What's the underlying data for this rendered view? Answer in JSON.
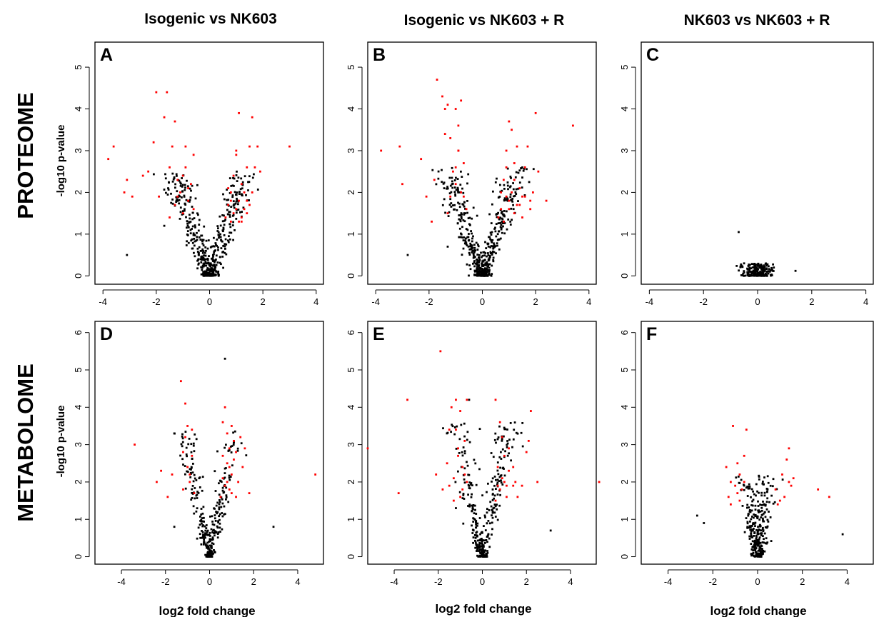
{
  "column_titles": [
    "Isogenic vs NK603",
    "Isogenic vs NK603 + R",
    "NK603 vs NK603 + R"
  ],
  "row_titles": [
    "PROTEOME",
    "METABOLOME"
  ],
  "ylabel": "-log10 p-value",
  "xlabel": "log2 fold change",
  "colors": {
    "significant": "#ff0000",
    "not_significant": "#000000"
  },
  "chart_data": [
    {
      "type": "scatter",
      "panel": "A",
      "column": "Isogenic vs NK603",
      "row": "PROTEOME",
      "xlim": [
        -4.3,
        4.3
      ],
      "ylim": [
        -0.2,
        5.6
      ],
      "x_ticks": [
        -4,
        -2,
        0,
        2,
        4
      ],
      "y_ticks": [
        0,
        1,
        2,
        3,
        4,
        5
      ],
      "cloud": {
        "spread": 0.14,
        "slope": 0.55,
        "ymax": 2.5,
        "count": 480
      },
      "significant_points": [
        [
          -3.8,
          2.8
        ],
        [
          -3.6,
          3.1
        ],
        [
          -3.1,
          2.3
        ],
        [
          -3.2,
          2.0
        ],
        [
          -2.9,
          1.9
        ],
        [
          -2.5,
          2.4
        ],
        [
          -2.3,
          2.5
        ],
        [
          -2.1,
          3.2
        ],
        [
          -2.0,
          4.4
        ],
        [
          -1.9,
          1.9
        ],
        [
          -1.7,
          3.8
        ],
        [
          -1.6,
          4.4
        ],
        [
          -1.5,
          2.6
        ],
        [
          -1.4,
          3.1
        ],
        [
          -1.3,
          3.7
        ],
        [
          -1.2,
          2.3
        ],
        [
          -1.1,
          2.0
        ],
        [
          -1.0,
          1.5
        ],
        [
          -0.9,
          2.6
        ],
        [
          -0.8,
          1.8
        ],
        [
          -0.7,
          2.2
        ],
        [
          -0.6,
          1.6
        ],
        [
          -1.5,
          1.4
        ],
        [
          -1.3,
          1.7
        ],
        [
          -0.9,
          3.1
        ],
        [
          -0.6,
          2.9
        ],
        [
          -0.8,
          2.1
        ],
        [
          -1.0,
          2.4
        ],
        [
          -1.2,
          1.9
        ],
        [
          0.6,
          1.4
        ],
        [
          0.7,
          1.7
        ],
        [
          0.8,
          2.0
        ],
        [
          0.9,
          1.5
        ],
        [
          0.8,
          1.8
        ],
        [
          0.9,
          2.4
        ],
        [
          1.0,
          2.9
        ],
        [
          1.0,
          3.0
        ],
        [
          1.1,
          3.9
        ],
        [
          1.2,
          2.2
        ],
        [
          1.3,
          1.6
        ],
        [
          1.4,
          1.8
        ],
        [
          1.5,
          3.1
        ],
        [
          1.6,
          2.0
        ],
        [
          1.6,
          3.8
        ],
        [
          1.7,
          2.6
        ],
        [
          1.8,
          3.1
        ],
        [
          1.9,
          2.5
        ],
        [
          1.2,
          1.4
        ],
        [
          1.1,
          1.8
        ],
        [
          1.3,
          2.0
        ],
        [
          1.4,
          1.5
        ],
        [
          1.5,
          1.7
        ],
        [
          1.0,
          1.6
        ],
        [
          1.2,
          1.3
        ],
        [
          3.0,
          3.1
        ],
        [
          0.7,
          2.1
        ],
        [
          1.1,
          1.3
        ],
        [
          1.4,
          2.6
        ],
        [
          0.8,
          1.3
        ]
      ],
      "notable_nonsignificant_points": [
        [
          -3.1,
          0.5
        ],
        [
          -1.7,
          1.2
        ]
      ]
    },
    {
      "type": "scatter",
      "panel": "B",
      "column": "Isogenic vs NK603 + R",
      "row": "PROTEOME",
      "xlim": [
        -4.3,
        4.3
      ],
      "ylim": [
        -0.2,
        5.6
      ],
      "x_ticks": [
        -4,
        -2,
        0,
        2,
        4
      ],
      "y_ticks": [
        0,
        1,
        2,
        3,
        4,
        5
      ],
      "cloud": {
        "spread": 0.14,
        "slope": 0.55,
        "ymax": 2.6,
        "count": 500
      },
      "significant_points": [
        [
          -3.8,
          3.0
        ],
        [
          -3.1,
          3.1
        ],
        [
          -3.0,
          2.2
        ],
        [
          -2.3,
          2.8
        ],
        [
          -2.1,
          1.9
        ],
        [
          -1.9,
          1.3
        ],
        [
          -1.8,
          2.3
        ],
        [
          -1.7,
          4.7
        ],
        [
          -1.5,
          4.3
        ],
        [
          -1.4,
          3.4
        ],
        [
          -1.4,
          4.0
        ],
        [
          -1.3,
          4.1
        ],
        [
          -1.2,
          3.3
        ],
        [
          -1.1,
          2.5
        ],
        [
          -1.0,
          2.2
        ],
        [
          -1.0,
          4.0
        ],
        [
          -0.9,
          3.0
        ],
        [
          -0.9,
          3.6
        ],
        [
          -0.8,
          2.0
        ],
        [
          -0.8,
          4.2
        ],
        [
          -0.7,
          1.9
        ],
        [
          -0.7,
          2.7
        ],
        [
          -0.6,
          1.6
        ],
        [
          -1.2,
          1.9
        ],
        [
          -1.3,
          1.5
        ],
        [
          -1.0,
          2.6
        ],
        [
          -0.9,
          3.0
        ],
        [
          0.6,
          1.4
        ],
        [
          0.7,
          1.6
        ],
        [
          0.7,
          2.0
        ],
        [
          0.8,
          2.3
        ],
        [
          0.9,
          2.6
        ],
        [
          0.9,
          3.0
        ],
        [
          1.0,
          3.7
        ],
        [
          1.0,
          1.8
        ],
        [
          1.1,
          2.0
        ],
        [
          1.1,
          3.5
        ],
        [
          1.2,
          1.5
        ],
        [
          1.2,
          2.7
        ],
        [
          1.3,
          1.7
        ],
        [
          1.3,
          3.1
        ],
        [
          1.4,
          2.1
        ],
        [
          1.5,
          1.9
        ],
        [
          1.6,
          2.6
        ],
        [
          1.7,
          3.1
        ],
        [
          1.8,
          1.6
        ],
        [
          1.9,
          2.0
        ],
        [
          2.0,
          3.9
        ],
        [
          2.1,
          2.5
        ],
        [
          2.4,
          1.8
        ],
        [
          3.4,
          3.6
        ],
        [
          1.0,
          1.6
        ],
        [
          1.4,
          1.7
        ],
        [
          0.8,
          1.3
        ],
        [
          1.6,
          1.9
        ],
        [
          1.2,
          2.3
        ],
        [
          1.5,
          1.4
        ],
        [
          1.8,
          1.8
        ],
        [
          0.9,
          1.9
        ]
      ],
      "notable_nonsignificant_points": [
        [
          -2.8,
          0.5
        ],
        [
          -1.3,
          0.7
        ]
      ]
    },
    {
      "type": "scatter",
      "panel": "C",
      "column": "NK603 vs NK603 + R",
      "row": "PROTEOME",
      "xlim": [
        -4.3,
        4.3
      ],
      "ylim": [
        -0.2,
        5.6
      ],
      "x_ticks": [
        -4,
        -2,
        0,
        2,
        4
      ],
      "y_ticks": [
        0,
        1,
        2,
        3,
        4,
        5
      ],
      "cloud": {
        "spread": 0.28,
        "slope": 0.08,
        "ymax": 0.3,
        "count": 220
      },
      "significant_points": [],
      "notable_nonsignificant_points": [
        [
          -0.7,
          1.05
        ],
        [
          1.4,
          0.12
        ],
        [
          -0.5,
          0.3
        ],
        [
          0.6,
          0.2
        ]
      ]
    },
    {
      "type": "scatter",
      "panel": "D",
      "column": "Isogenic vs NK603",
      "row": "METABOLOME",
      "xlim": [
        -5.2,
        5.2
      ],
      "ylim": [
        -0.2,
        6.3
      ],
      "x_ticks": [
        -4,
        -2,
        0,
        2,
        4
      ],
      "y_ticks": [
        0,
        1,
        2,
        3,
        4,
        5,
        6
      ],
      "cloud": {
        "spread": 0.1,
        "slope": 0.35,
        "ymax": 3.4,
        "count": 300
      },
      "significant_points": [
        [
          -3.4,
          3.0
        ],
        [
          -2.4,
          2.0
        ],
        [
          -2.2,
          2.3
        ],
        [
          -1.9,
          1.6
        ],
        [
          -1.7,
          2.2
        ],
        [
          -1.3,
          4.7
        ],
        [
          -1.2,
          2.8
        ],
        [
          -1.1,
          4.1
        ],
        [
          -1.0,
          3.5
        ],
        [
          -0.9,
          2.2
        ],
        [
          -0.8,
          3.4
        ],
        [
          -0.7,
          1.7
        ],
        [
          -1.0,
          2.4
        ],
        [
          -0.9,
          2.0
        ],
        [
          -1.2,
          1.8
        ],
        [
          -0.8,
          2.7
        ],
        [
          -1.1,
          3.2
        ],
        [
          0.5,
          1.6
        ],
        [
          0.6,
          2.1
        ],
        [
          0.6,
          3.6
        ],
        [
          0.7,
          4.0
        ],
        [
          0.8,
          2.5
        ],
        [
          0.8,
          3.3
        ],
        [
          0.9,
          1.8
        ],
        [
          0.9,
          2.9
        ],
        [
          1.0,
          3.5
        ],
        [
          1.0,
          2.2
        ],
        [
          1.1,
          2.6
        ],
        [
          1.1,
          3.1
        ],
        [
          1.2,
          1.6
        ],
        [
          1.3,
          2.0
        ],
        [
          1.4,
          3.2
        ],
        [
          1.5,
          2.4
        ],
        [
          1.6,
          2.9
        ],
        [
          1.8,
          1.7
        ],
        [
          4.8,
          2.2
        ],
        [
          0.7,
          1.9
        ],
        [
          0.9,
          2.4
        ],
        [
          1.2,
          2.8
        ],
        [
          0.8,
          2.0
        ],
        [
          1.0,
          1.7
        ],
        [
          0.6,
          2.7
        ]
      ],
      "highlight_nonsignificant": [
        [
          0.7,
          5.3
        ]
      ],
      "notable_nonsignificant_points": [
        [
          2.9,
          0.8
        ],
        [
          -1.6,
          0.8
        ]
      ]
    },
    {
      "type": "scatter",
      "panel": "E",
      "column": "Isogenic vs NK603 + R",
      "row": "METABOLOME",
      "xlim": [
        -5.2,
        5.2
      ],
      "ylim": [
        -0.2,
        6.3
      ],
      "x_ticks": [
        -4,
        -2,
        0,
        2,
        4
      ],
      "y_ticks": [
        0,
        1,
        2,
        3,
        4,
        5,
        6
      ],
      "cloud": {
        "spread": 0.1,
        "slope": 0.35,
        "ymax": 3.6,
        "count": 320
      },
      "significant_points": [
        [
          -5.2,
          2.9
        ],
        [
          -3.8,
          1.7
        ],
        [
          -3.4,
          4.2
        ],
        [
          -2.1,
          2.2
        ],
        [
          -1.9,
          5.5
        ],
        [
          -1.8,
          1.8
        ],
        [
          -1.6,
          2.5
        ],
        [
          -1.5,
          3.4
        ],
        [
          -1.4,
          4.0
        ],
        [
          -1.3,
          2.1
        ],
        [
          -1.2,
          4.2
        ],
        [
          -1.1,
          2.7
        ],
        [
          -1.0,
          3.9
        ],
        [
          -1.0,
          1.6
        ],
        [
          -0.9,
          2.4
        ],
        [
          -0.8,
          3.1
        ],
        [
          -0.7,
          4.2
        ],
        [
          -0.7,
          2.0
        ],
        [
          -1.3,
          1.5
        ],
        [
          -1.1,
          2.9
        ],
        [
          -0.9,
          1.8
        ],
        [
          -1.5,
          1.9
        ],
        [
          -1.2,
          3.4
        ],
        [
          -0.8,
          2.2
        ],
        [
          0.6,
          1.5
        ],
        [
          0.6,
          4.2
        ],
        [
          0.7,
          2.4
        ],
        [
          0.8,
          3.6
        ],
        [
          0.8,
          1.8
        ],
        [
          0.9,
          3.2
        ],
        [
          1.0,
          2.0
        ],
        [
          1.0,
          2.7
        ],
        [
          1.1,
          1.6
        ],
        [
          1.2,
          2.3
        ],
        [
          1.4,
          1.9
        ],
        [
          1.6,
          1.6
        ],
        [
          1.8,
          1.9
        ],
        [
          2.0,
          2.8
        ],
        [
          2.1,
          3.1
        ],
        [
          2.2,
          3.9
        ],
        [
          2.5,
          2.0
        ],
        [
          5.3,
          2.0
        ],
        [
          0.9,
          2.1
        ],
        [
          1.2,
          2.9
        ],
        [
          0.7,
          1.9
        ],
        [
          1.4,
          2.4
        ],
        [
          1.1,
          1.9
        ],
        [
          1.5,
          2.0
        ]
      ],
      "highlight_nonsignificant": [
        [
          -0.6,
          4.2
        ]
      ],
      "notable_nonsignificant_points": [
        [
          3.1,
          0.7
        ],
        [
          -1.2,
          1.3
        ]
      ]
    },
    {
      "type": "scatter",
      "panel": "F",
      "column": "NK603 vs NK603 + R",
      "row": "METABOLOME",
      "xlim": [
        -5.2,
        5.2
      ],
      "ylim": [
        -0.2,
        6.3
      ],
      "x_ticks": [
        -4,
        -2,
        0,
        2,
        4
      ],
      "y_ticks": [
        0,
        1,
        2,
        3,
        4,
        5,
        6
      ],
      "cloud": {
        "spread": 0.13,
        "slope": 0.22,
        "ymax": 2.2,
        "count": 300
      },
      "significant_points": [
        [
          -1.4,
          2.4
        ],
        [
          -1.3,
          1.6
        ],
        [
          -1.2,
          2.0
        ],
        [
          -1.1,
          3.5
        ],
        [
          -1.0,
          1.9
        ],
        [
          -0.9,
          2.5
        ],
        [
          -0.8,
          1.5
        ],
        [
          -0.8,
          2.2
        ],
        [
          -0.7,
          1.8
        ],
        [
          -0.6,
          2.7
        ],
        [
          -0.5,
          3.4
        ],
        [
          -1.2,
          1.4
        ],
        [
          -0.9,
          1.7
        ],
        [
          -0.6,
          2.0
        ],
        [
          0.8,
          1.8
        ],
        [
          0.9,
          1.4
        ],
        [
          1.1,
          2.2
        ],
        [
          1.2,
          1.6
        ],
        [
          1.3,
          2.6
        ],
        [
          1.4,
          2.9
        ],
        [
          1.5,
          1.9
        ],
        [
          1.6,
          2.1
        ],
        [
          2.7,
          1.8
        ],
        [
          3.2,
          1.6
        ],
        [
          1.0,
          1.5
        ],
        [
          1.4,
          2.0
        ]
      ],
      "notable_nonsignificant_points": [
        [
          3.8,
          0.6
        ],
        [
          -2.7,
          1.1
        ],
        [
          -2.4,
          0.9
        ]
      ]
    }
  ]
}
